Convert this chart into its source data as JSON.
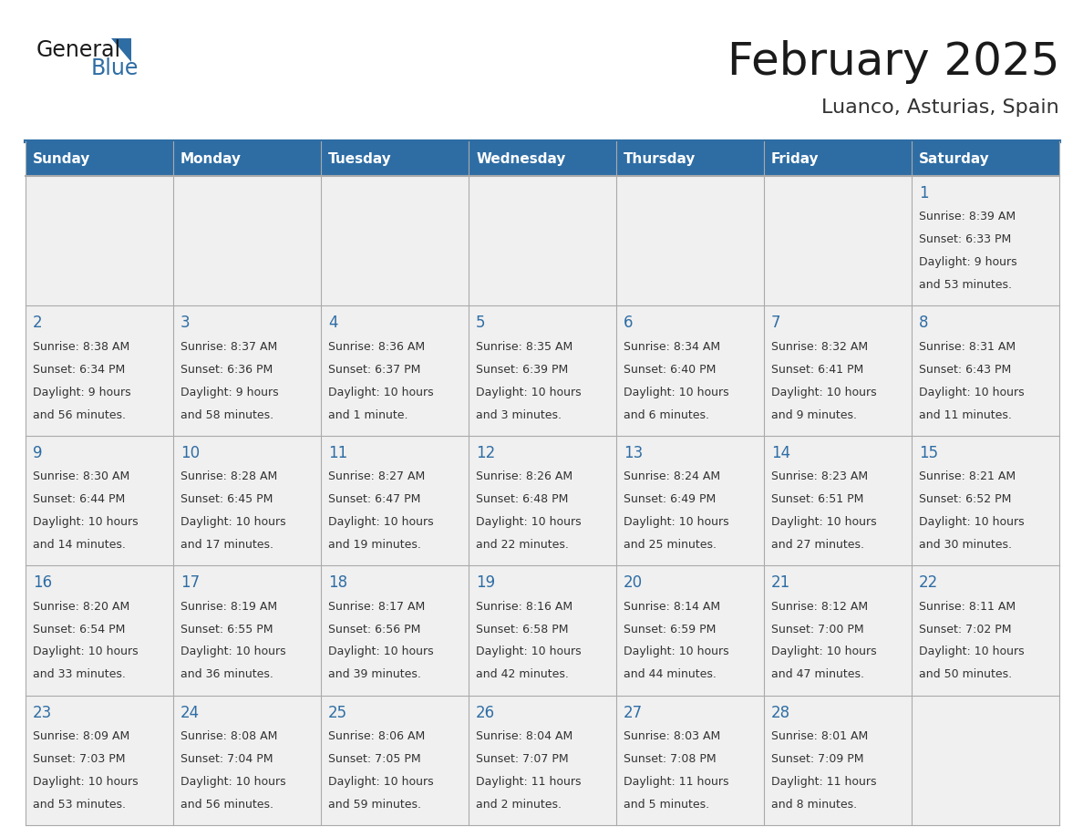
{
  "title": "February 2025",
  "subtitle": "Luanco, Asturias, Spain",
  "header_bg_color": "#2E6DA4",
  "header_text_color": "#FFFFFF",
  "cell_bg_color": "#F0F0F0",
  "title_color": "#1a1a1a",
  "subtitle_color": "#333333",
  "day_number_color": "#2E6DA4",
  "cell_text_color": "#333333",
  "grid_line_color": "#aaaaaa",
  "days_of_week": [
    "Sunday",
    "Monday",
    "Tuesday",
    "Wednesday",
    "Thursday",
    "Friday",
    "Saturday"
  ],
  "weeks": [
    [
      null,
      null,
      null,
      null,
      null,
      null,
      1
    ],
    [
      2,
      3,
      4,
      5,
      6,
      7,
      8
    ],
    [
      9,
      10,
      11,
      12,
      13,
      14,
      15
    ],
    [
      16,
      17,
      18,
      19,
      20,
      21,
      22
    ],
    [
      23,
      24,
      25,
      26,
      27,
      28,
      null
    ]
  ],
  "cell_data": {
    "1": {
      "sunrise": "8:39 AM",
      "sunset": "6:33 PM",
      "daylight_hours": "9 hours",
      "daylight_mins": "and 53 minutes."
    },
    "2": {
      "sunrise": "8:38 AM",
      "sunset": "6:34 PM",
      "daylight_hours": "9 hours",
      "daylight_mins": "and 56 minutes."
    },
    "3": {
      "sunrise": "8:37 AM",
      "sunset": "6:36 PM",
      "daylight_hours": "9 hours",
      "daylight_mins": "and 58 minutes."
    },
    "4": {
      "sunrise": "8:36 AM",
      "sunset": "6:37 PM",
      "daylight_hours": "10 hours",
      "daylight_mins": "and 1 minute."
    },
    "5": {
      "sunrise": "8:35 AM",
      "sunset": "6:39 PM",
      "daylight_hours": "10 hours",
      "daylight_mins": "and 3 minutes."
    },
    "6": {
      "sunrise": "8:34 AM",
      "sunset": "6:40 PM",
      "daylight_hours": "10 hours",
      "daylight_mins": "and 6 minutes."
    },
    "7": {
      "sunrise": "8:32 AM",
      "sunset": "6:41 PM",
      "daylight_hours": "10 hours",
      "daylight_mins": "and 9 minutes."
    },
    "8": {
      "sunrise": "8:31 AM",
      "sunset": "6:43 PM",
      "daylight_hours": "10 hours",
      "daylight_mins": "and 11 minutes."
    },
    "9": {
      "sunrise": "8:30 AM",
      "sunset": "6:44 PM",
      "daylight_hours": "10 hours",
      "daylight_mins": "and 14 minutes."
    },
    "10": {
      "sunrise": "8:28 AM",
      "sunset": "6:45 PM",
      "daylight_hours": "10 hours",
      "daylight_mins": "and 17 minutes."
    },
    "11": {
      "sunrise": "8:27 AM",
      "sunset": "6:47 PM",
      "daylight_hours": "10 hours",
      "daylight_mins": "and 19 minutes."
    },
    "12": {
      "sunrise": "8:26 AM",
      "sunset": "6:48 PM",
      "daylight_hours": "10 hours",
      "daylight_mins": "and 22 minutes."
    },
    "13": {
      "sunrise": "8:24 AM",
      "sunset": "6:49 PM",
      "daylight_hours": "10 hours",
      "daylight_mins": "and 25 minutes."
    },
    "14": {
      "sunrise": "8:23 AM",
      "sunset": "6:51 PM",
      "daylight_hours": "10 hours",
      "daylight_mins": "and 27 minutes."
    },
    "15": {
      "sunrise": "8:21 AM",
      "sunset": "6:52 PM",
      "daylight_hours": "10 hours",
      "daylight_mins": "and 30 minutes."
    },
    "16": {
      "sunrise": "8:20 AM",
      "sunset": "6:54 PM",
      "daylight_hours": "10 hours",
      "daylight_mins": "and 33 minutes."
    },
    "17": {
      "sunrise": "8:19 AM",
      "sunset": "6:55 PM",
      "daylight_hours": "10 hours",
      "daylight_mins": "and 36 minutes."
    },
    "18": {
      "sunrise": "8:17 AM",
      "sunset": "6:56 PM",
      "daylight_hours": "10 hours",
      "daylight_mins": "and 39 minutes."
    },
    "19": {
      "sunrise": "8:16 AM",
      "sunset": "6:58 PM",
      "daylight_hours": "10 hours",
      "daylight_mins": "and 42 minutes."
    },
    "20": {
      "sunrise": "8:14 AM",
      "sunset": "6:59 PM",
      "daylight_hours": "10 hours",
      "daylight_mins": "and 44 minutes."
    },
    "21": {
      "sunrise": "8:12 AM",
      "sunset": "7:00 PM",
      "daylight_hours": "10 hours",
      "daylight_mins": "and 47 minutes."
    },
    "22": {
      "sunrise": "8:11 AM",
      "sunset": "7:02 PM",
      "daylight_hours": "10 hours",
      "daylight_mins": "and 50 minutes."
    },
    "23": {
      "sunrise": "8:09 AM",
      "sunset": "7:03 PM",
      "daylight_hours": "10 hours",
      "daylight_mins": "and 53 minutes."
    },
    "24": {
      "sunrise": "8:08 AM",
      "sunset": "7:04 PM",
      "daylight_hours": "10 hours",
      "daylight_mins": "and 56 minutes."
    },
    "25": {
      "sunrise": "8:06 AM",
      "sunset": "7:05 PM",
      "daylight_hours": "10 hours",
      "daylight_mins": "and 59 minutes."
    },
    "26": {
      "sunrise": "8:04 AM",
      "sunset": "7:07 PM",
      "daylight_hours": "11 hours",
      "daylight_mins": "and 2 minutes."
    },
    "27": {
      "sunrise": "8:03 AM",
      "sunset": "7:08 PM",
      "daylight_hours": "11 hours",
      "daylight_mins": "and 5 minutes."
    },
    "28": {
      "sunrise": "8:01 AM",
      "sunset": "7:09 PM",
      "daylight_hours": "11 hours",
      "daylight_mins": "and 8 minutes."
    }
  },
  "logo_text_general": "General",
  "logo_text_blue": "Blue",
  "logo_color_general": "#1a1a1a",
  "logo_color_blue": "#2E6DA4",
  "logo_triangle_color": "#2E6DA4",
  "title_fontsize": 36,
  "subtitle_fontsize": 16,
  "header_fontsize": 11,
  "day_num_fontsize": 12,
  "cell_text_fontsize": 9
}
